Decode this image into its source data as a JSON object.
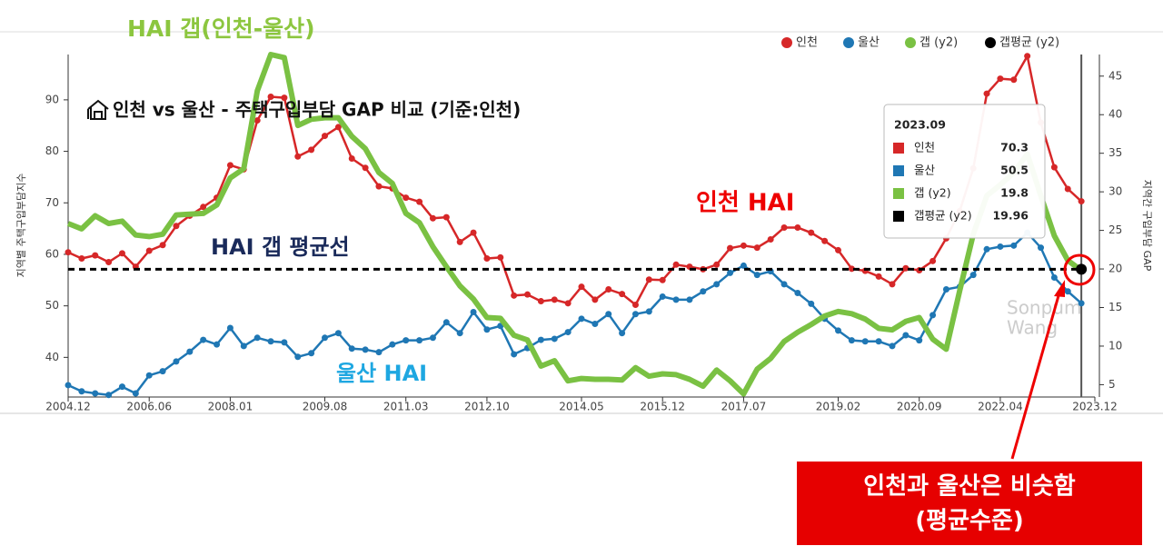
{
  "chart_data": {
    "type": "line",
    "title": "인천 vs 울산 - 주택구입부담 GAP 비교 (기준:인천)",
    "y_axis_label": "지역별 주택구입부담지수",
    "y2_axis_label": "지역간 구입부담 GAP",
    "categories": [
      "2004.12",
      null,
      null,
      null,
      null,
      null,
      "2006.06",
      null,
      null,
      null,
      null,
      null,
      "2008.01",
      null,
      null,
      null,
      null,
      null,
      null,
      "2009.08",
      null,
      null,
      null,
      null,
      null,
      "2011.03",
      null,
      null,
      null,
      null,
      null,
      "2012.10",
      null,
      null,
      null,
      null,
      null,
      null,
      "2014.05",
      null,
      null,
      null,
      null,
      null,
      "2015.12",
      null,
      null,
      null,
      null,
      null,
      "2017.07",
      null,
      null,
      null,
      null,
      null,
      null,
      "2019.02",
      null,
      null,
      null,
      null,
      null,
      "2020.09",
      null,
      null,
      null,
      null,
      null,
      "2022.04",
      null,
      null,
      null,
      null,
      null,
      null,
      "2023.12"
    ],
    "series": [
      {
        "name": "인천",
        "color": "#d62728",
        "values": [
          60.4,
          59.2,
          59.8,
          58.5,
          60.2,
          57.6,
          60.7,
          61.8,
          65.5,
          67.5,
          69.2,
          71,
          77.3,
          76.5,
          86,
          90.6,
          90.4,
          79,
          80.3,
          83,
          84.7,
          78.6,
          76.8,
          73.2,
          72.8,
          71,
          70.2,
          67,
          67.2,
          62.4,
          64.2,
          59.2,
          59.4,
          52,
          52.2,
          50.9,
          51.2,
          50.5,
          53.7,
          51.2,
          53.2,
          52.3,
          50.2,
          55.1,
          55,
          58,
          57.6,
          57.1,
          58,
          61.2,
          61.7,
          61.3,
          62.9,
          65.2,
          65.2,
          64.2,
          62.6,
          60.8,
          57.2,
          56.8,
          55.7,
          54.2,
          57.3,
          56.9,
          58.7,
          63.1,
          68.4,
          76.7,
          91.2,
          94.1,
          93.9,
          98.5,
          85.6,
          76.9,
          72.7,
          70.3,
          null
        ]
      },
      {
        "name": "울산",
        "color": "#1f77b4",
        "values": [
          34.6,
          33.4,
          33,
          32.7,
          34.3,
          33,
          36.5,
          37.3,
          39.2,
          41.1,
          43.4,
          42.5,
          45.7,
          42.2,
          43.8,
          43.1,
          42.9,
          40.1,
          40.8,
          43.8,
          44.7,
          41.7,
          41.5,
          41,
          42.5,
          43.3,
          43.3,
          43.8,
          46.8,
          44.7,
          48.8,
          45.4,
          46.1,
          40.6,
          41.8,
          43.4,
          43.6,
          44.9,
          47.5,
          46.5,
          48.4,
          44.7,
          48.4,
          48.9,
          51.8,
          51.2,
          51.2,
          52.8,
          54.2,
          56.4,
          57.8,
          56,
          56.7,
          54.2,
          52.5,
          50.4,
          47.5,
          45.2,
          43.3,
          43.1,
          43.1,
          42.2,
          44.3,
          43.3,
          48.2,
          53.2,
          53.7,
          56,
          61,
          61.5,
          61.7,
          64.2,
          61.3,
          55.5,
          52.8,
          50.5,
          null
        ]
      },
      {
        "name": "갭 (y2)",
        "color": "#7ac143",
        "axis": "y2",
        "values": [
          25.9,
          25.2,
          26.9,
          25.9,
          26.2,
          24.4,
          24.2,
          24.5,
          27,
          27.1,
          27.2,
          28.3,
          31.8,
          33,
          43.1,
          47.8,
          47.4,
          38.6,
          39.4,
          39.6,
          39.6,
          37.2,
          35.6,
          32.5,
          31.1,
          27.2,
          26,
          22.9,
          20.3,
          17.8,
          16.1,
          13.7,
          13.6,
          11.4,
          10.8,
          7.4,
          8.1,
          5.5,
          5.8,
          5.7,
          5.7,
          5.6,
          7.2,
          6.1,
          6.4,
          6.3,
          5.7,
          4.8,
          6.9,
          5.5,
          3.8,
          7,
          8.4,
          10.6,
          11.8,
          12.8,
          13.9,
          14.5,
          14.2,
          13.5,
          12.3,
          12.1,
          13.2,
          13.7,
          10.9,
          9.6,
          17.2,
          24.5,
          29.5,
          30.9,
          32.5,
          34.9,
          29.5,
          24.3,
          21.1,
          19.8,
          null
        ]
      },
      {
        "name": "갭평균 (y2)",
        "color": "#000000",
        "axis": "y2",
        "value": 19.96
      }
    ],
    "ylim": [
      32.3,
      98.8
    ],
    "yticks": [
      40,
      50,
      60,
      70,
      80,
      90
    ],
    "y2lim": [
      3.4,
      47.8
    ],
    "y2ticks": [
      5,
      10,
      15,
      20,
      25,
      30,
      35,
      40,
      45
    ],
    "tooltip_title": "2023.09",
    "annotations": {
      "gap_label": "HAI 갭(인천-울산)",
      "incheon_label": "인천 HAI",
      "ulsan_label": "울산 HAI",
      "average_label": "HAI 갭 평균선",
      "callout": [
        "인천과 울산은 비슷함",
        "(평균수준)"
      ]
    },
    "watermark": [
      "Sonpum",
      "Wang"
    ]
  }
}
